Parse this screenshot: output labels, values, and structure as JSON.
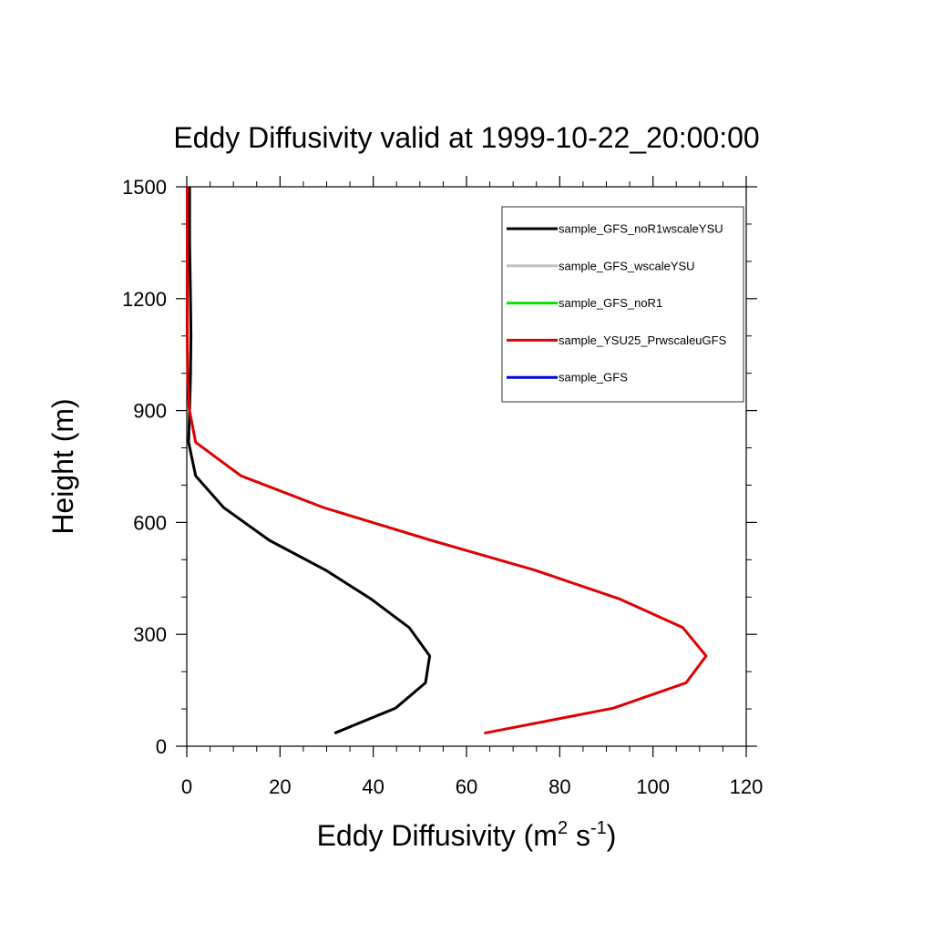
{
  "chart_data": {
    "type": "line",
    "title": "Eddy Diffusivity valid at 1999-10-22_20:00:00",
    "xlabel": "Eddy Diffusivity (m",
    "xlabel_sup1": "2",
    "xlabel_mid": " s",
    "xlabel_sup2": "-1",
    "xlabel_end": ")",
    "ylabel": "Height (m)",
    "xlim": [
      0,
      120
    ],
    "ylim": [
      0,
      1500
    ],
    "xticks": [
      "0",
      "20",
      "40",
      "60",
      "80",
      "100",
      "120"
    ],
    "yticks": [
      "0",
      "300",
      "600",
      "900",
      "1200",
      "1500"
    ],
    "legend_position": "top-right",
    "series": [
      {
        "name": "sample_GFS_noR1wscaleYSU",
        "color": "#000000",
        "x": [
          31.7,
          44.8,
          51.2,
          52.1,
          47.7,
          39.5,
          29.8,
          17.7,
          7.9,
          1.9,
          0.4,
          0.6,
          0.8,
          0.9,
          0.8,
          0.6,
          0.6
        ],
        "y": [
          35,
          102,
          170,
          242,
          318,
          395,
          472,
          552,
          640,
          725,
          815,
          905,
          995,
          1100,
          1200,
          1350,
          1500
        ]
      },
      {
        "name": "sample_GFS_wscaleYSU",
        "color": "#c0c0c0",
        "x": [],
        "y": []
      },
      {
        "name": "sample_GFS_noR1",
        "color": "#00e600",
        "x": [],
        "y": []
      },
      {
        "name": "sample_YSU25_PrwscaleuGFS",
        "color": "#e00000",
        "x": [
          63.8,
          91.5,
          107.1,
          111.4,
          106.4,
          92.8,
          74.7,
          52.4,
          29.3,
          11.6,
          1.9,
          0.5,
          0.2,
          0.1,
          0.1,
          0.1,
          0.1
        ],
        "y": [
          35,
          102,
          170,
          242,
          318,
          395,
          472,
          552,
          640,
          725,
          815,
          905,
          995,
          1100,
          1200,
          1350,
          1500
        ]
      },
      {
        "name": "sample_GFS",
        "color": "#0000e6",
        "x": [],
        "y": []
      }
    ]
  }
}
